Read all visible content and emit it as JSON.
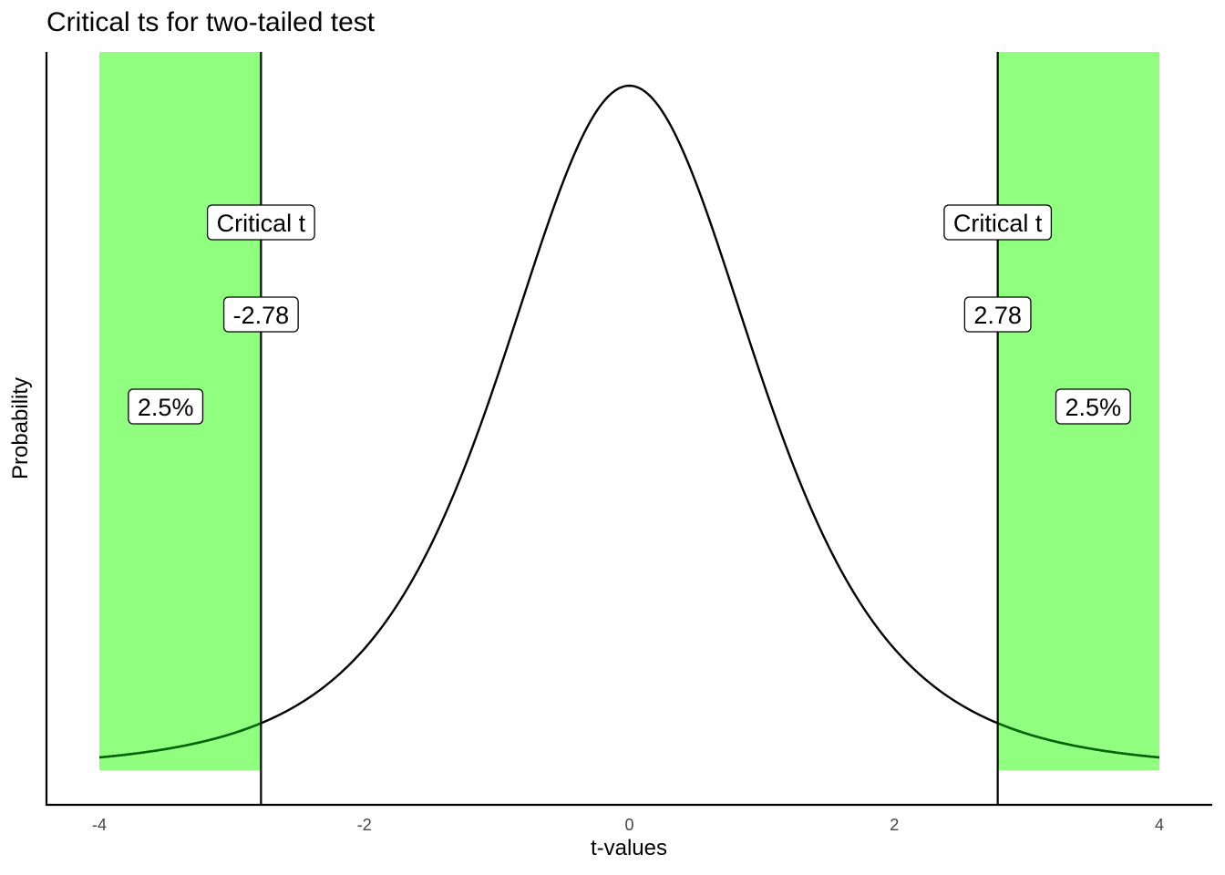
{
  "chart_data": {
    "type": "area",
    "title": "Critical ts for two-tailed test",
    "xlabel": "t-values",
    "ylabel": "Probability",
    "xlim": [
      -4,
      4
    ],
    "x_ticks": [
      "-4",
      "-2",
      "0",
      "2",
      "4"
    ],
    "grid": false,
    "distribution": {
      "name": "Student t",
      "df": 4
    },
    "critical_values": [
      -2.78,
      2.78
    ],
    "shaded_regions": [
      {
        "from": -4,
        "to": -2.78,
        "color": "#90ff80"
      },
      {
        "from": 2.78,
        "to": 4,
        "color": "#90ff80"
      }
    ],
    "annotations": [
      {
        "x": -2.78,
        "text": "Critical t"
      },
      {
        "x": -2.78,
        "text": "-2.78"
      },
      {
        "x": -3.5,
        "text": "2.5%"
      },
      {
        "x": 2.78,
        "text": "Critical t"
      },
      {
        "x": 2.78,
        "text": "2.78"
      },
      {
        "x": 3.5,
        "text": "2.5%"
      }
    ],
    "colors": {
      "curve": "#000000",
      "curve_in_region": "#006400",
      "region": "#90ff80"
    }
  }
}
